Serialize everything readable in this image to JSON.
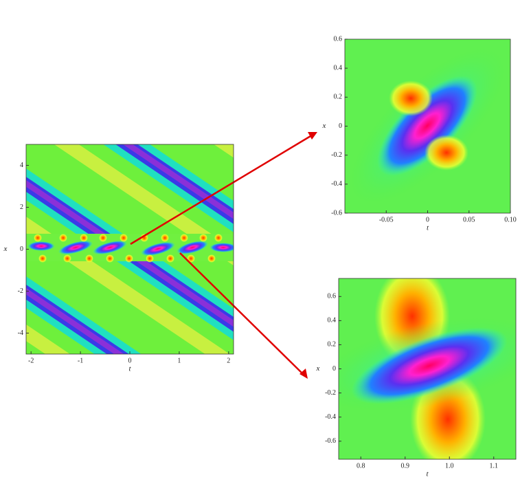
{
  "chart_data": [
    {
      "type": "density",
      "xlabel": "t",
      "ylabel": "x",
      "xlim": [
        -2.1,
        2.1
      ],
      "ylim": [
        -5,
        5
      ],
      "xticks": [
        -2,
        -1,
        0,
        1,
        2
      ],
      "yticks": [
        -4,
        -2,
        0,
        2,
        4
      ]
    },
    {
      "type": "density",
      "xlabel": "t",
      "ylabel": "x",
      "xlim": [
        -0.1,
        0.1
      ],
      "ylim": [
        -0.6,
        0.6
      ],
      "xticks": [
        -0.05,
        0,
        0.05,
        {
          "value": 0.1,
          "label": "0.10"
        }
      ],
      "yticks": [
        -0.6,
        -0.4,
        -0.2,
        0,
        0.2,
        0.4,
        0.6
      ]
    },
    {
      "type": "density",
      "xlabel": "t",
      "ylabel": "x",
      "xlim": [
        0.75,
        1.15
      ],
      "ylim": [
        -0.75,
        0.75
      ],
      "xticks": [
        0.8,
        0.9,
        {
          "value": 1,
          "label": "1.0"
        },
        1.1
      ],
      "yticks": [
        -0.6,
        -0.4,
        -0.2,
        0,
        0.2,
        0.4,
        0.6
      ]
    }
  ]
}
